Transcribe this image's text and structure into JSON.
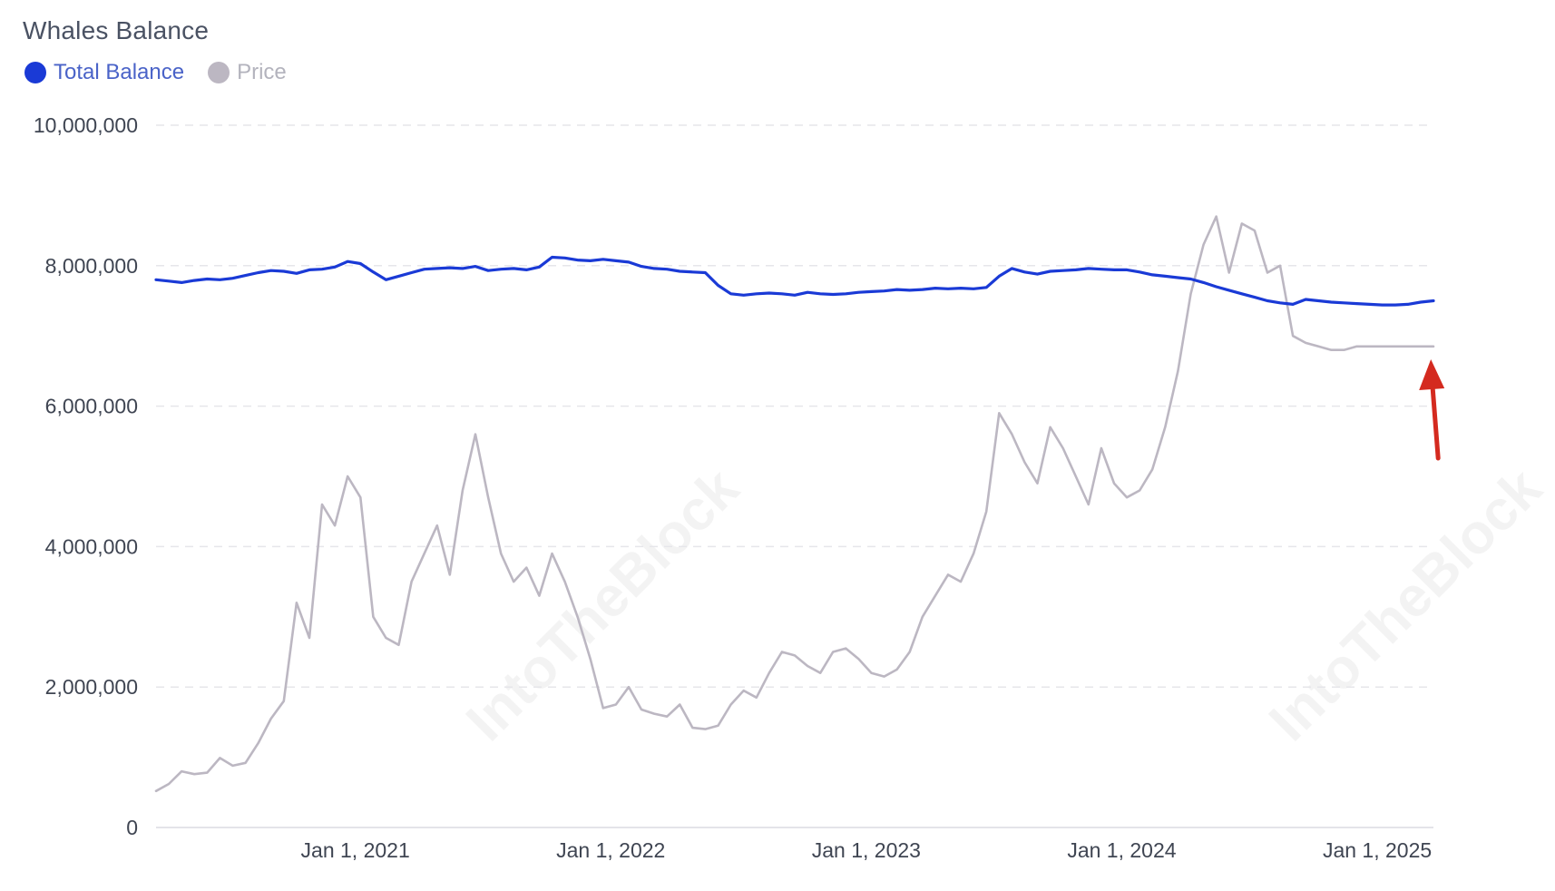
{
  "chart_data": {
    "type": "line",
    "title": "Whales Balance",
    "legend": [
      {
        "name": "Total Balance",
        "color": "#1a3ad6"
      },
      {
        "name": "Price",
        "color": "#bcb7c2"
      }
    ],
    "y_ticks": [
      "10,000,000",
      "8,000,000",
      "6,000,000",
      "4,000,000",
      "2,000,000",
      "0"
    ],
    "y_tick_values": [
      10000000,
      8000000,
      6000000,
      4000000,
      2000000,
      0
    ],
    "x_ticks": [
      "Jan 1, 2021",
      "Jan 1, 2022",
      "Jan 1, 2023",
      "Jan 1, 2024",
      "Jan 1, 2025"
    ],
    "x_tick_values": [
      2021.0,
      2022.0,
      2023.0,
      2024.0,
      2025.0
    ],
    "xlim": [
      2020.22,
      2025.22
    ],
    "ylim": [
      0,
      10000000
    ],
    "grid": "horizontal-dashed",
    "watermark": "IntoTheBlock",
    "annotation": {
      "type": "arrow",
      "color": "#d42a1f",
      "points_to_date": 2025.21
    },
    "series": [
      {
        "name": "Total Balance",
        "color": "#1a3ad6",
        "x": [
          2020.22,
          2020.27,
          2020.32,
          2020.37,
          2020.42,
          2020.47,
          2020.52,
          2020.57,
          2020.62,
          2020.67,
          2020.72,
          2020.77,
          2020.82,
          2020.87,
          2020.92,
          2020.97,
          2021.02,
          2021.07,
          2021.12,
          2021.17,
          2021.22,
          2021.27,
          2021.32,
          2021.37,
          2021.42,
          2021.47,
          2021.52,
          2021.57,
          2021.62,
          2021.67,
          2021.72,
          2021.77,
          2021.82,
          2021.87,
          2021.92,
          2021.97,
          2022.02,
          2022.07,
          2022.12,
          2022.17,
          2022.22,
          2022.27,
          2022.32,
          2022.37,
          2022.42,
          2022.47,
          2022.52,
          2022.57,
          2022.62,
          2022.67,
          2022.72,
          2022.77,
          2022.82,
          2022.87,
          2022.92,
          2022.97,
          2023.02,
          2023.07,
          2023.12,
          2023.17,
          2023.22,
          2023.27,
          2023.32,
          2023.37,
          2023.42,
          2023.47,
          2023.52,
          2023.57,
          2023.62,
          2023.67,
          2023.72,
          2023.77,
          2023.82,
          2023.87,
          2023.92,
          2023.97,
          2024.02,
          2024.07,
          2024.12,
          2024.17,
          2024.22,
          2024.27,
          2024.32,
          2024.37,
          2024.42,
          2024.47,
          2024.52,
          2024.57,
          2024.62,
          2024.67,
          2024.72,
          2024.77,
          2024.82,
          2024.87,
          2024.92,
          2024.97,
          2025.02,
          2025.07,
          2025.12,
          2025.17,
          2025.22
        ],
        "values": [
          7800000,
          7780000,
          7760000,
          7790000,
          7810000,
          7800000,
          7820000,
          7860000,
          7900000,
          7930000,
          7920000,
          7890000,
          7940000,
          7950000,
          7980000,
          8060000,
          8030000,
          7910000,
          7800000,
          7850000,
          7900000,
          7950000,
          7960000,
          7970000,
          7960000,
          7990000,
          7930000,
          7950000,
          7960000,
          7940000,
          7980000,
          8120000,
          8110000,
          8080000,
          8070000,
          8090000,
          8070000,
          8050000,
          7990000,
          7960000,
          7950000,
          7920000,
          7910000,
          7900000,
          7720000,
          7600000,
          7580000,
          7600000,
          7610000,
          7600000,
          7580000,
          7620000,
          7600000,
          7590000,
          7600000,
          7620000,
          7630000,
          7640000,
          7660000,
          7650000,
          7660000,
          7680000,
          7670000,
          7680000,
          7670000,
          7690000,
          7850000,
          7960000,
          7910000,
          7880000,
          7920000,
          7930000,
          7940000,
          7960000,
          7950000,
          7940000,
          7940000,
          7910000,
          7870000,
          7850000,
          7830000,
          7810000,
          7760000,
          7700000,
          7650000,
          7600000,
          7550000,
          7500000,
          7470000,
          7450000,
          7520000,
          7500000,
          7480000,
          7470000,
          7460000,
          7450000,
          7440000,
          7440000,
          7450000,
          7480000,
          7500000
        ]
      },
      {
        "name": "Price",
        "color": "#bcb7c2",
        "x": [
          2020.22,
          2020.27,
          2020.32,
          2020.37,
          2020.42,
          2020.47,
          2020.52,
          2020.57,
          2020.62,
          2020.67,
          2020.72,
          2020.77,
          2020.82,
          2020.87,
          2020.92,
          2020.97,
          2021.02,
          2021.07,
          2021.12,
          2021.17,
          2021.22,
          2021.27,
          2021.32,
          2021.37,
          2021.42,
          2021.47,
          2021.52,
          2021.57,
          2021.62,
          2021.67,
          2021.72,
          2021.77,
          2021.82,
          2021.87,
          2021.92,
          2021.97,
          2022.02,
          2022.07,
          2022.12,
          2022.17,
          2022.22,
          2022.27,
          2022.32,
          2022.37,
          2022.42,
          2022.47,
          2022.52,
          2022.57,
          2022.62,
          2022.67,
          2022.72,
          2022.77,
          2022.82,
          2022.87,
          2022.92,
          2022.97,
          2023.02,
          2023.07,
          2023.12,
          2023.17,
          2023.22,
          2023.27,
          2023.32,
          2023.37,
          2023.42,
          2023.47,
          2023.52,
          2023.57,
          2023.62,
          2023.67,
          2023.72,
          2023.77,
          2023.82,
          2023.87,
          2023.92,
          2023.97,
          2024.02,
          2024.07,
          2024.12,
          2024.17,
          2024.22,
          2024.27,
          2024.32,
          2024.37,
          2024.42,
          2024.47,
          2024.52,
          2024.57,
          2024.62,
          2024.67,
          2024.72,
          2024.77,
          2024.82,
          2024.87,
          2024.92,
          2024.97,
          2025.02,
          2025.07,
          2025.12,
          2025.17,
          2025.22
        ],
        "values": [
          520000,
          620000,
          800000,
          760000,
          780000,
          990000,
          880000,
          920000,
          1200000,
          1550000,
          1800000,
          3200000,
          2700000,
          4600000,
          4300000,
          5000000,
          4700000,
          3000000,
          2700000,
          2600000,
          3500000,
          3900000,
          4300000,
          3600000,
          4800000,
          5600000,
          4700000,
          3900000,
          3500000,
          3700000,
          3300000,
          3900000,
          3500000,
          3000000,
          2400000,
          1700000,
          1750000,
          2000000,
          1680000,
          1620000,
          1580000,
          1750000,
          1420000,
          1400000,
          1450000,
          1750000,
          1950000,
          1850000,
          2200000,
          2500000,
          2450000,
          2300000,
          2200000,
          2500000,
          2550000,
          2400000,
          2200000,
          2150000,
          2250000,
          2500000,
          3000000,
          3300000,
          3600000,
          3500000,
          3900000,
          4500000,
          5900000,
          5600000,
          5200000,
          4900000,
          5700000,
          5400000,
          5000000,
          4600000,
          5400000,
          4900000,
          4700000,
          4800000,
          5100000,
          5700000,
          6500000,
          7600000,
          8300000,
          8700000,
          7900000,
          8600000,
          8500000,
          7900000,
          8000000,
          7000000,
          6900000,
          6850000,
          6800000,
          6800000,
          6850000,
          6850000,
          6850000,
          6850000,
          6850000,
          6850000,
          6850000
        ]
      }
    ]
  }
}
